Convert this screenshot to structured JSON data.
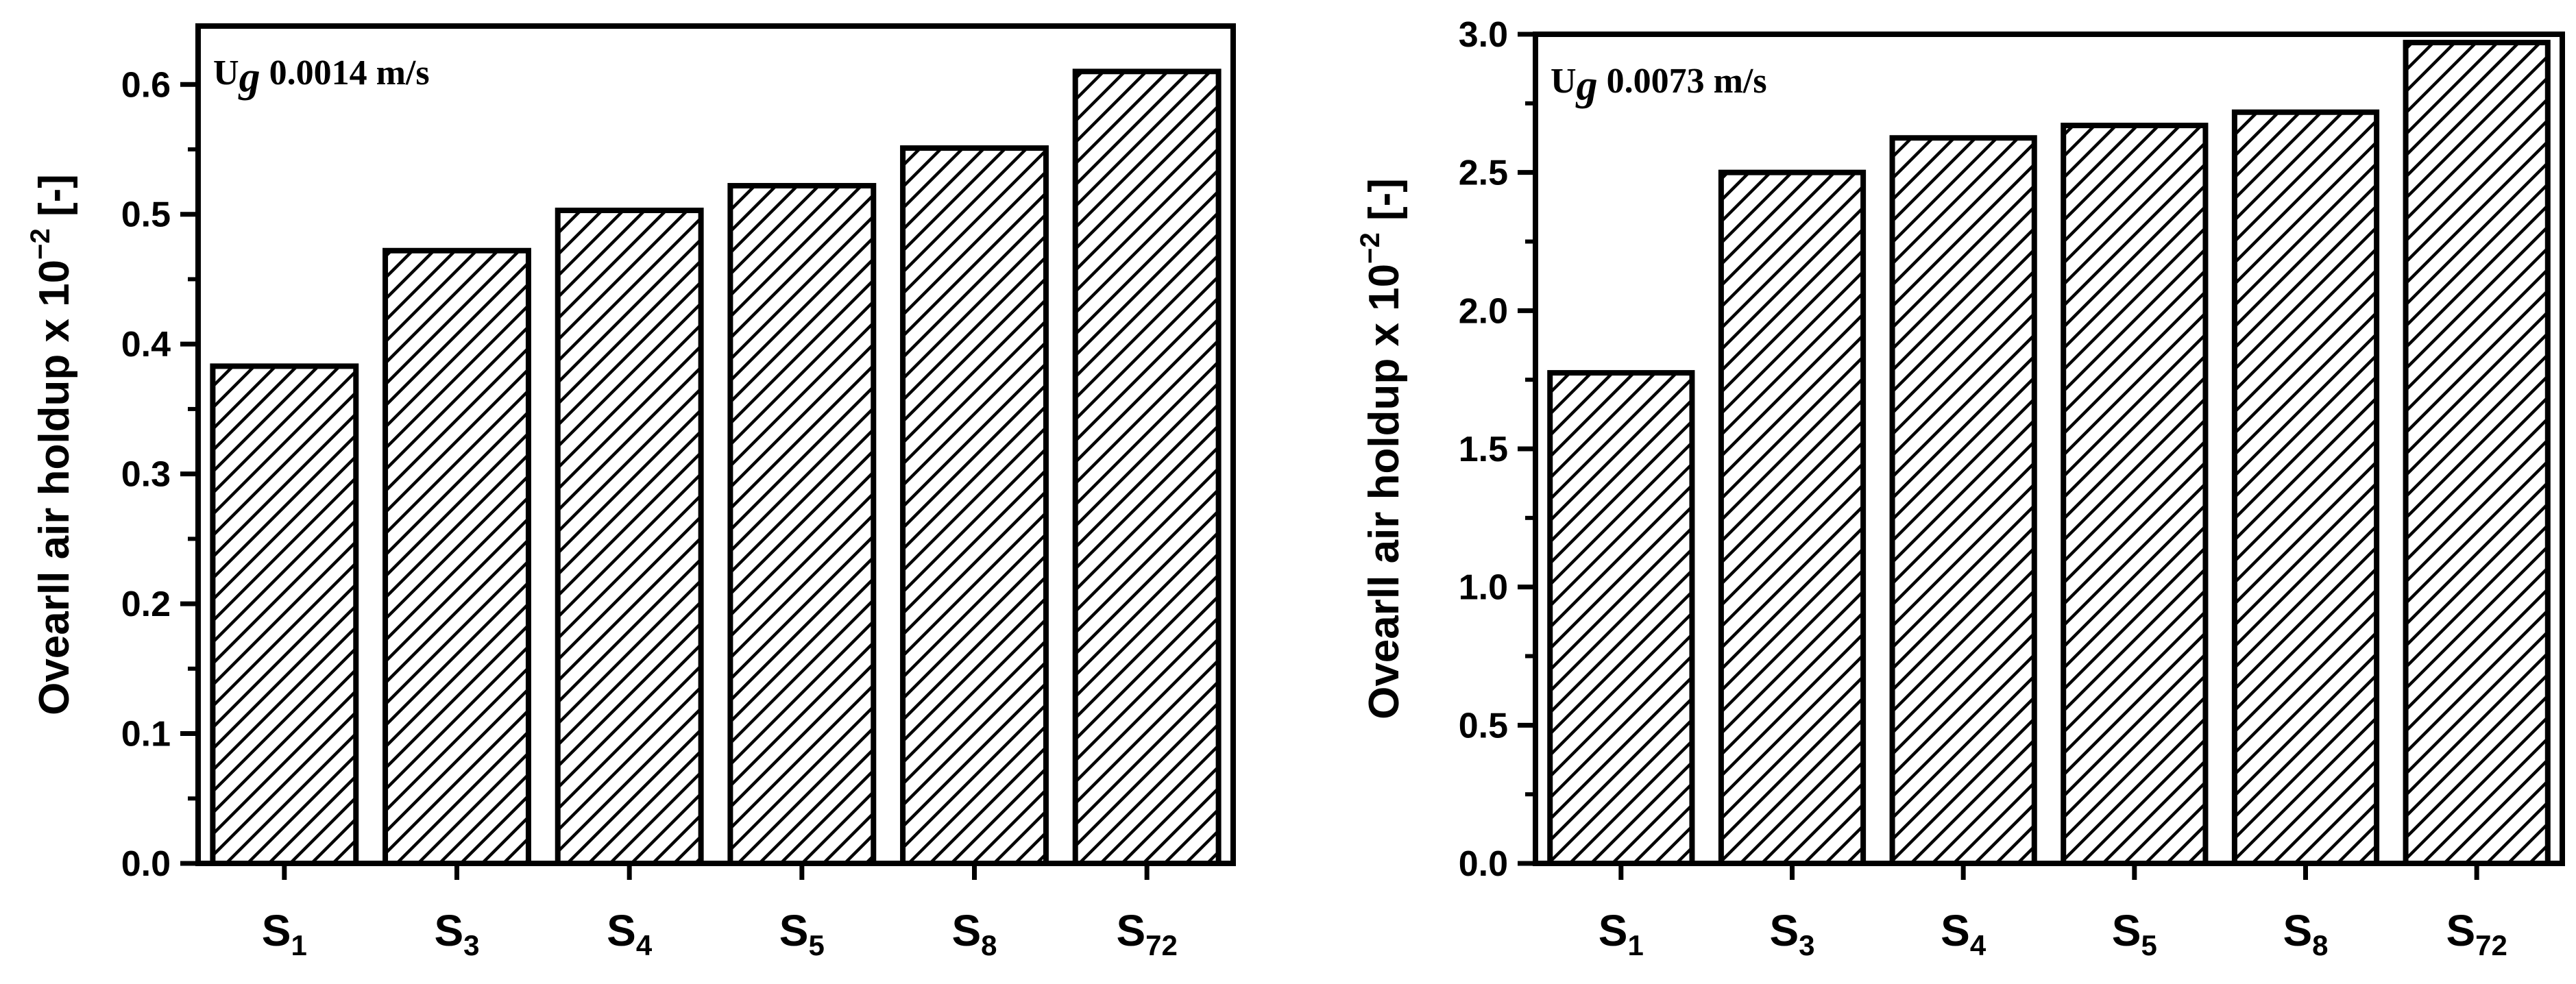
{
  "chart_data": [
    {
      "type": "bar",
      "annotation": {
        "main": "U",
        "sub": "g",
        "rest": " 0.0014 m/s"
      },
      "ylabel": {
        "main": "Ovearll air holdup x 10",
        "sup": "−2",
        "suffix": " [-]"
      },
      "categories": [
        {
          "main": "S",
          "sub": "1"
        },
        {
          "main": "S",
          "sub": "3"
        },
        {
          "main": "S",
          "sub": "4"
        },
        {
          "main": "S",
          "sub": "5"
        },
        {
          "main": "S",
          "sub": "8"
        },
        {
          "main": "S",
          "sub": "72"
        }
      ],
      "values": [
        0.383,
        0.472,
        0.503,
        0.522,
        0.551,
        0.61
      ],
      "ylim": [
        0.0,
        0.645
      ],
      "yticks": [
        0.0,
        0.1,
        0.2,
        0.3,
        0.4,
        0.5,
        0.6
      ],
      "ytick_labels": [
        "0.0",
        "0.1",
        "0.2",
        "0.3",
        "0.4",
        "0.5",
        "0.6"
      ],
      "grid": false,
      "fill": "hatched",
      "bar_color": "#000000"
    },
    {
      "type": "bar",
      "annotation": {
        "main": "U",
        "sub": "g",
        "rest": " 0.0073 m/s"
      },
      "ylabel": {
        "main": "Ovearll air holdup x 10",
        "sup": "−2",
        "suffix": " [-]"
      },
      "categories": [
        {
          "main": "S",
          "sub": "1"
        },
        {
          "main": "S",
          "sub": "3"
        },
        {
          "main": "S",
          "sub": "4"
        },
        {
          "main": "S",
          "sub": "5"
        },
        {
          "main": "S",
          "sub": "8"
        },
        {
          "main": "S",
          "sub": "72"
        }
      ],
      "values": [
        1.775,
        2.5,
        2.625,
        2.67,
        2.718,
        2.97
      ],
      "ylim": [
        0.0,
        3.0
      ],
      "yticks": [
        0.0,
        0.5,
        1.0,
        1.5,
        2.0,
        2.5,
        3.0
      ],
      "ytick_labels": [
        "0.0",
        "0.5",
        "1.0",
        "1.5",
        "2.0",
        "2.5",
        "3.0"
      ],
      "grid": false,
      "fill": "hatched",
      "bar_color": "#000000"
    }
  ]
}
